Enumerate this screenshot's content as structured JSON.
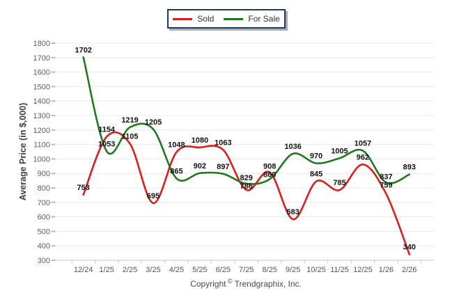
{
  "footer": {
    "copyright_prefix": "Copyright",
    "copyright_symbol": "©",
    "copyright_suffix": "Trendgraphix, Inc."
  },
  "chart_data": {
    "type": "line",
    "title": "",
    "xlabel": "",
    "ylabel": "Average Price (in $,000)",
    "categories": [
      "12/24",
      "1/25",
      "2/25",
      "3/25",
      "4/25",
      "5/25",
      "6/25",
      "7/25",
      "8/25",
      "9/25",
      "10/25",
      "11/25",
      "12/25",
      "1/26",
      "2/26"
    ],
    "series": [
      {
        "name": "Sold",
        "color": "#e01b1b",
        "values": [
          753,
          1154,
          1105,
          695,
          1048,
          1080,
          1063,
          786,
          908,
          583,
          845,
          785,
          962,
          759,
          340
        ]
      },
      {
        "name": "For Sale",
        "color": "#1c7a1c",
        "values": [
          1702,
          1053,
          1219,
          1205,
          865,
          902,
          897,
          829,
          860,
          1036,
          970,
          1005,
          1057,
          837,
          893
        ]
      }
    ],
    "ylim": [
      300,
      1800
    ],
    "ytick_step": 100,
    "grid": true,
    "smooth": true,
    "data_labels": true,
    "legend_position": "top-center"
  },
  "colors": {
    "grid": "#e8e8e8",
    "axis": "#c6c6c6",
    "y_tick_mark": "#a3c2e8",
    "tick_text": "#5d5d5d",
    "data_label_text": "#111111"
  }
}
